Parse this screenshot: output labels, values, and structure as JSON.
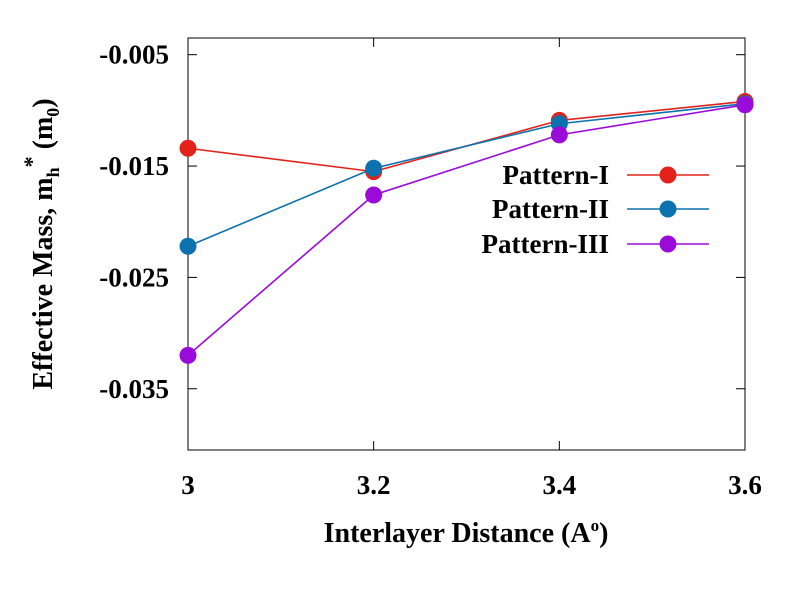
{
  "chart_data": {
    "type": "line",
    "x": [
      3,
      3.2,
      3.4,
      3.6
    ],
    "x_tick_labels": [
      "3",
      "3.2",
      "3.4",
      "3.6"
    ],
    "y_tick_labels": [
      "-0.005",
      "-0.015",
      "-0.025",
      "-0.035"
    ],
    "y_ticks": [
      -0.005,
      -0.015,
      -0.025,
      -0.035
    ],
    "xlim": [
      3,
      3.6
    ],
    "ylim": [
      -0.0405,
      -0.0035
    ],
    "xlabel": "Interlayer Distance (A",
    "xlabel_sup": "o",
    "xlabel_close": ")",
    "ylabel": "Effective Mass, m",
    "ylabel_sub_h": "h",
    "ylabel_sup_star": "*",
    "ylabel_m0_open": " (m",
    "ylabel_sub_0": "0",
    "ylabel_close": ")",
    "grid": false,
    "legend_position": "right",
    "series": [
      {
        "name": "Pattern-I",
        "color": "#e3231b",
        "values": [
          -0.0134,
          -0.0155,
          -0.0109,
          -0.0092
        ]
      },
      {
        "name": "Pattern-II",
        "color": "#0c72ad",
        "values": [
          -0.0222,
          -0.0152,
          -0.0112,
          -0.0094
        ]
      },
      {
        "name": "Pattern-III",
        "color": "#9a0bd9",
        "values": [
          -0.032,
          -0.0176,
          -0.0122,
          -0.0095
        ]
      }
    ]
  }
}
